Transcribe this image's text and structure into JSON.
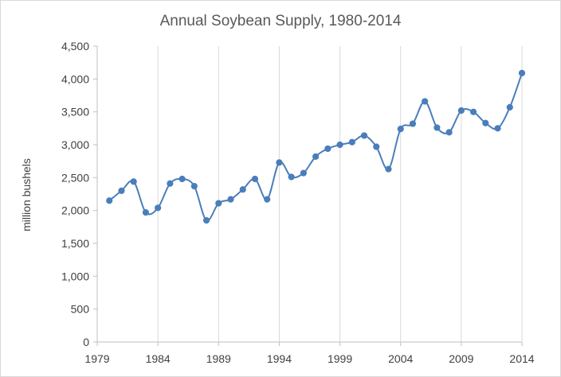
{
  "chart_data": {
    "type": "line",
    "title": "Annual Soybean Supply, 1980-2014",
    "xlabel": "",
    "ylabel": "million bushels",
    "xlim": [
      1979,
      2014
    ],
    "ylim": [
      0,
      4500
    ],
    "x_ticks": [
      1979,
      1984,
      1989,
      1994,
      1999,
      2004,
      2009,
      2014
    ],
    "y_ticks": [
      0,
      500,
      1000,
      1500,
      2000,
      2500,
      3000,
      3500,
      4000,
      4500
    ],
    "y_tick_labels": [
      "0",
      "500",
      "1,000",
      "1,500",
      "2,000",
      "2,500",
      "3,000",
      "3,500",
      "4,000",
      "4,500"
    ],
    "grid": "vertical",
    "line_color": "#4a7ebb",
    "marker_color": "#4a7ebb",
    "x": [
      1980,
      1981,
      1982,
      1983,
      1984,
      1985,
      1986,
      1987,
      1988,
      1989,
      1990,
      1991,
      1992,
      1993,
      1994,
      1995,
      1996,
      1997,
      1998,
      1999,
      2000,
      2001,
      2002,
      2003,
      2004,
      2005,
      2006,
      2007,
      2008,
      2009,
      2010,
      2011,
      2012,
      2013,
      2014
    ],
    "series": [
      {
        "values": [
          2150,
          2300,
          2440,
          1970,
          2040,
          2410,
          2480,
          2370,
          1850,
          2110,
          2170,
          2320,
          2480,
          2170,
          2730,
          2510,
          2570,
          2820,
          2940,
          3000,
          3040,
          3140,
          2970,
          2630,
          3240,
          3320,
          3660,
          3260,
          3190,
          3520,
          3500,
          3330,
          3250,
          3570,
          4090
        ]
      }
    ]
  }
}
